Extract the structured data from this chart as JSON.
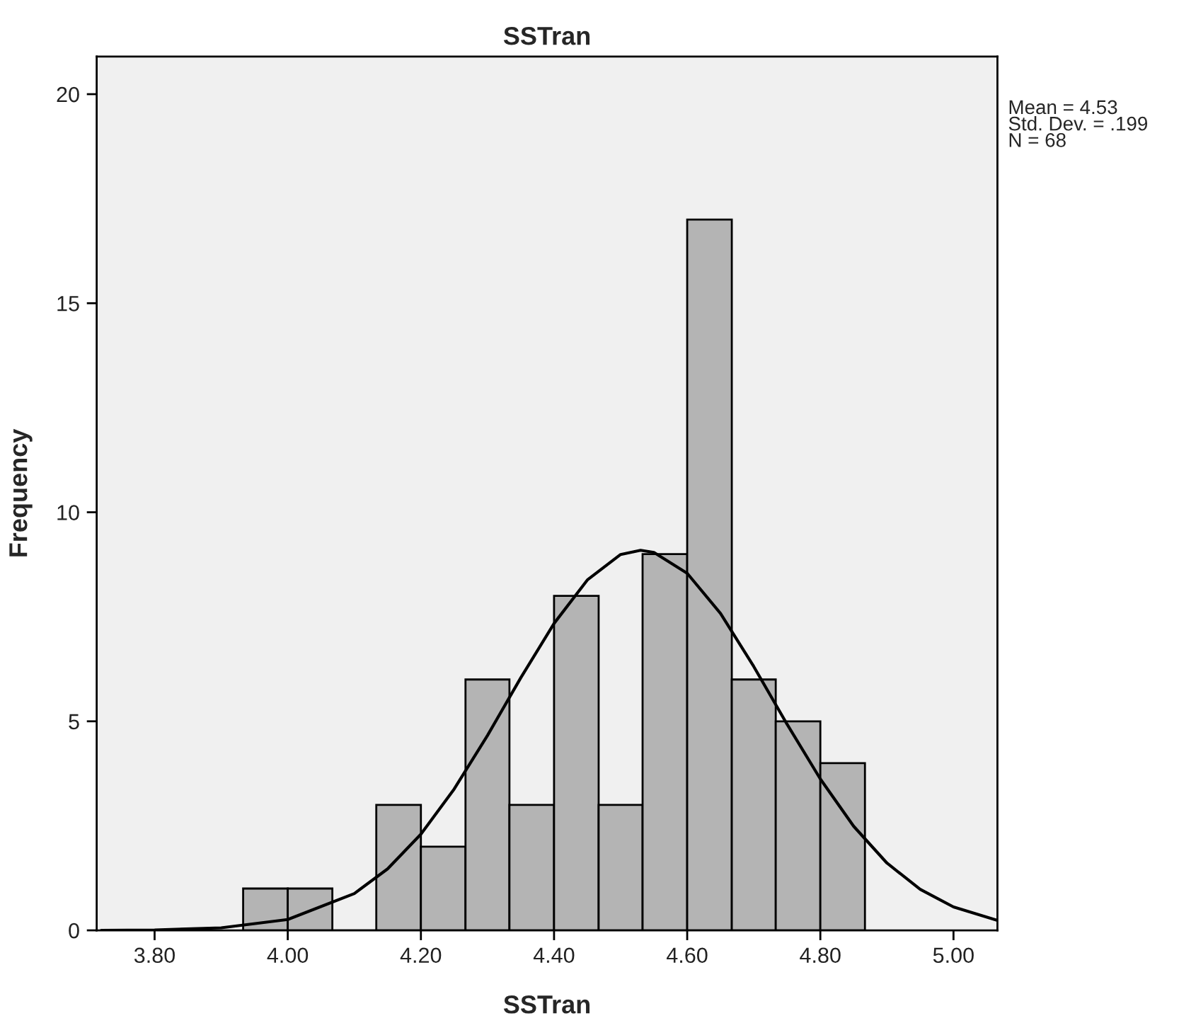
{
  "chart_data": {
    "type": "histogram",
    "title": "SSTran",
    "xlabel": "SSTran",
    "ylabel": "Frequency",
    "bins": [
      3.933,
      4.0,
      4.067,
      4.133,
      4.2,
      4.267,
      4.333,
      4.4,
      4.467,
      4.533,
      4.6,
      4.667,
      4.733,
      4.8,
      4.867
    ],
    "values": [
      1,
      1,
      0,
      3,
      2,
      6,
      3,
      8,
      3,
      9,
      17,
      6,
      5,
      4
    ],
    "color": "#b4b4b4",
    "series": [
      {
        "type": "line",
        "color": "#000000",
        "x": [
          3.72,
          3.8,
          3.9,
          4.0,
          4.1,
          4.15,
          4.2,
          4.25,
          4.3,
          4.35,
          4.4,
          4.45,
          4.5,
          4.53,
          4.55,
          4.6,
          4.65,
          4.7,
          4.75,
          4.8,
          4.85,
          4.9,
          4.95,
          5.0,
          5.066
        ],
        "values": [
          0.0,
          0.01,
          0.06,
          0.26,
          0.88,
          1.47,
          2.3,
          3.38,
          4.66,
          6.04,
          7.34,
          8.38,
          8.99,
          9.09,
          9.04,
          8.54,
          7.58,
          6.31,
          4.93,
          3.62,
          2.49,
          1.61,
          0.98,
          0.56,
          0.24
        ]
      }
    ],
    "xlim": [
      3.713,
      5.066
    ],
    "xticks": [
      {
        "value": 3.8,
        "label": "3.80"
      },
      {
        "value": 4.0,
        "label": "4.00"
      },
      {
        "value": 4.2,
        "label": "4.20"
      },
      {
        "value": 4.4,
        "label": "4.40"
      },
      {
        "value": 4.6,
        "label": "4.60"
      },
      {
        "value": 4.8,
        "label": "4.80"
      },
      {
        "value": 5.0,
        "label": "5.00"
      }
    ],
    "ylim": [
      0,
      20.9
    ],
    "yticks": [
      0,
      5,
      10,
      15,
      20
    ],
    "grid": false,
    "legend": false,
    "annotations": [
      "Mean = 4.53",
      "Std. Dev. = .199",
      "N = 68"
    ]
  }
}
